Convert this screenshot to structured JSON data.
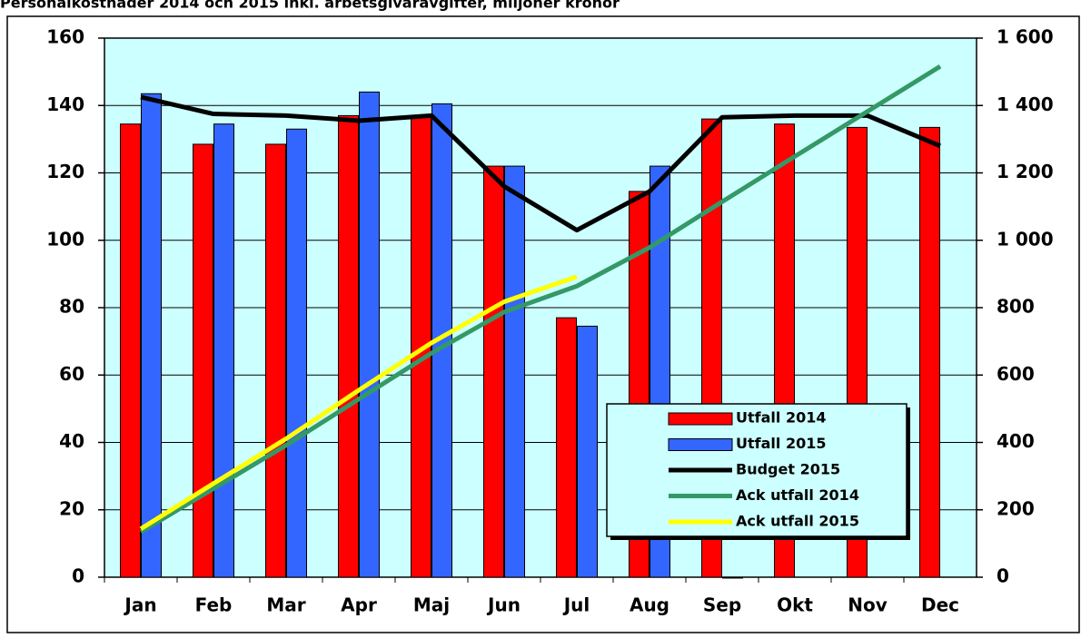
{
  "chart_data": {
    "type": "bar",
    "title": "Personalkostnader 2014 och 2015 inkl. arbetsgivaravgifter, miljoner kronor",
    "categories": [
      "Jan",
      "Feb",
      "Mar",
      "Apr",
      "Maj",
      "Jun",
      "Jul",
      "Aug",
      "Sep",
      "Okt",
      "Nov",
      "Dec"
    ],
    "series": [
      {
        "name": "Utfall 2014",
        "type": "bar",
        "color": "#ff0000",
        "values": [
          134.5,
          128.5,
          128.5,
          137,
          136.5,
          122,
          77,
          114.5,
          136,
          134.5,
          133.5,
          133.5
        ]
      },
      {
        "name": "Utfall 2015",
        "type": "bar",
        "color": "#3366ff",
        "values": [
          143.5,
          134.5,
          133,
          144,
          140.5,
          122,
          74.5,
          122,
          0,
          null,
          null,
          null
        ]
      },
      {
        "name": "Budget 2015",
        "type": "line",
        "color": "#000000",
        "values": [
          142.5,
          137.5,
          137,
          135.5,
          137,
          116,
          103,
          114.5,
          136.5,
          137,
          137,
          128
        ]
      },
      {
        "name": "Ack utfall 2014",
        "type": "line",
        "axis": "y2",
        "color": "#339966",
        "values": [
          134.5,
          263,
          391.5,
          528.5,
          665,
          787,
          864,
          978.5,
          1114.5,
          1249,
          1382.5,
          1516
        ]
      },
      {
        "name": "Ack utfall 2015",
        "type": "line",
        "axis": "y2",
        "color": "#ffff00",
        "values": [
          143.5,
          278,
          411,
          555,
          695.5,
          817.5,
          892,
          null,
          null,
          null,
          null,
          null
        ]
      }
    ],
    "ylim": [
      0,
      160
    ],
    "yticks": [
      0,
      20,
      40,
      60,
      80,
      100,
      120,
      140,
      160
    ],
    "y2lim": [
      0,
      1600
    ],
    "y2ticks": [
      0,
      200,
      400,
      600,
      800,
      {
        "value": 1000,
        "label": "1 000"
      },
      {
        "value": 1200,
        "label": "1 200"
      },
      {
        "value": 1400,
        "label": "1 400"
      },
      {
        "value": 1600,
        "label": "1 600"
      }
    ],
    "grid": true,
    "legend": "lower right",
    "background": "#ccffff"
  }
}
